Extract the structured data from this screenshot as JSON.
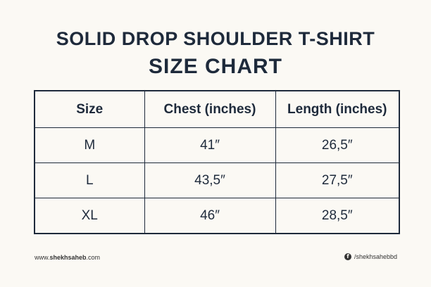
{
  "title": {
    "line1": "SOLID DROP SHOULDER T-SHIRT",
    "line2": "SIZE CHART"
  },
  "table": {
    "headers": [
      "Size",
      "Chest (inches)",
      "Length (inches)"
    ],
    "rows": [
      [
        "M",
        "41″",
        "26,5″"
      ],
      [
        "L",
        "43,5″",
        "27,5″"
      ],
      [
        "XL",
        "46″",
        "28,5″"
      ]
    ]
  },
  "footer": {
    "website_prefix": "www.",
    "website_bold": "shekhsaheb",
    "website_suffix": ".com",
    "social_icon": "facebook-icon",
    "social_handle": "/shekhsahebbd"
  }
}
